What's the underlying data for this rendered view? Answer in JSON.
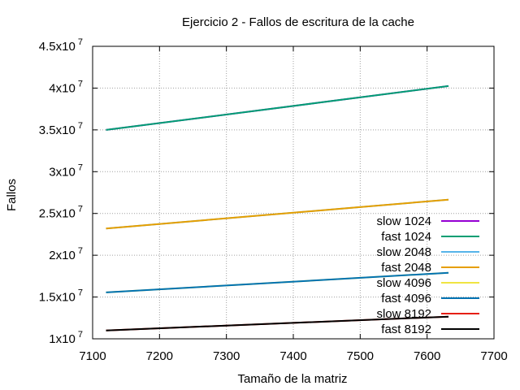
{
  "chart_data": {
    "type": "line",
    "title": "Ejercicio 2 - Fallos de escritura de la cache",
    "xlabel": "Tamaño de la matriz",
    "ylabel": "Fallos",
    "xlim": [
      7100,
      7700
    ],
    "ylim": [
      10000000,
      45000000
    ],
    "x_ticks": [
      {
        "value": 7100,
        "label": "7100"
      },
      {
        "value": 7200,
        "label": "7200"
      },
      {
        "value": 7300,
        "label": "7300"
      },
      {
        "value": 7400,
        "label": "7400"
      },
      {
        "value": 7500,
        "label": "7500"
      },
      {
        "value": 7600,
        "label": "7600"
      },
      {
        "value": 7700,
        "label": "7700"
      }
    ],
    "y_ticks": [
      {
        "value": 10000000,
        "mantissa": "1x10",
        "exp": "7"
      },
      {
        "value": 15000000,
        "mantissa": "1.5x10",
        "exp": "7"
      },
      {
        "value": 20000000,
        "mantissa": "2x10",
        "exp": "7"
      },
      {
        "value": 25000000,
        "mantissa": "2.5x10",
        "exp": "7"
      },
      {
        "value": 30000000,
        "mantissa": "3x10",
        "exp": "7"
      },
      {
        "value": 35000000,
        "mantissa": "3.5x10",
        "exp": "7"
      },
      {
        "value": 40000000,
        "mantissa": "4x10",
        "exp": "7"
      },
      {
        "value": 45000000,
        "mantissa": "4.5x10",
        "exp": "7"
      }
    ],
    "grid": true,
    "legend_position": "bottom-right",
    "series": [
      {
        "name": "slow 1024",
        "color": "#9400d3",
        "x": [
          7120,
          7632
        ],
        "y": [
          35000000,
          40250000
        ]
      },
      {
        "name": "fast 1024",
        "color": "#009e73",
        "x": [
          7120,
          7632
        ],
        "y": [
          35000000,
          40250000
        ]
      },
      {
        "name": "slow 2048",
        "color": "#56b4e9",
        "x": [
          7120,
          7632
        ],
        "y": [
          23200000,
          26650000
        ]
      },
      {
        "name": "fast 2048",
        "color": "#e69f00",
        "x": [
          7120,
          7632
        ],
        "y": [
          23200000,
          26650000
        ]
      },
      {
        "name": "slow 4096",
        "color": "#f0e442",
        "x": [
          7120,
          7632
        ],
        "y": [
          15550000,
          17900000
        ]
      },
      {
        "name": "fast 4096",
        "color": "#0072b2",
        "x": [
          7120,
          7632
        ],
        "y": [
          15550000,
          17900000
        ]
      },
      {
        "name": "slow 8192",
        "color": "#e51e10",
        "x": [
          7120,
          7632
        ],
        "y": [
          11000000,
          12650000
        ]
      },
      {
        "name": "fast 8192",
        "color": "#000000",
        "x": [
          7120,
          7632
        ],
        "y": [
          11000000,
          12650000
        ]
      }
    ]
  }
}
